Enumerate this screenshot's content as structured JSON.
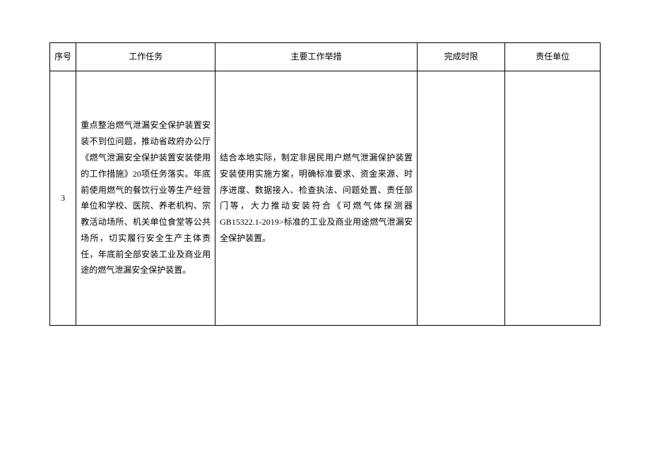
{
  "table": {
    "headers": {
      "seq": "序号",
      "task": "工作任务",
      "measure": "主要工作举措",
      "deadline": "完成时限",
      "unit": "责任单位"
    },
    "row": {
      "seq": "3",
      "task": "重点整治燃气泄漏安全保护装置安装不到位问题，推动省政府办公厅《燃气泄漏安全保护装置安装使用的工作措施》20项任务落实。年底前使用燃气的餐饮行业等生产经营单位和学校、医院、养老机构、宗教活动场所、机关单位食堂等公共场所，切实履行安全生产主体责任，年底前全部安装工业及商业用途的燃气泄漏安全保护装置。",
      "measure": "结合本地实际，制定非居民用户燃气泄漏保护装置安装使用实施方案，明确标准要求、资金来源、时序进度、数据接入、检查执法、问题处置、责任部门等，大力推动安装符合《可燃气体探测器GB15322.1-2019>标准的工业及商业用途燃气泄漏安全保护装置。",
      "deadline": "",
      "unit": ""
    }
  }
}
